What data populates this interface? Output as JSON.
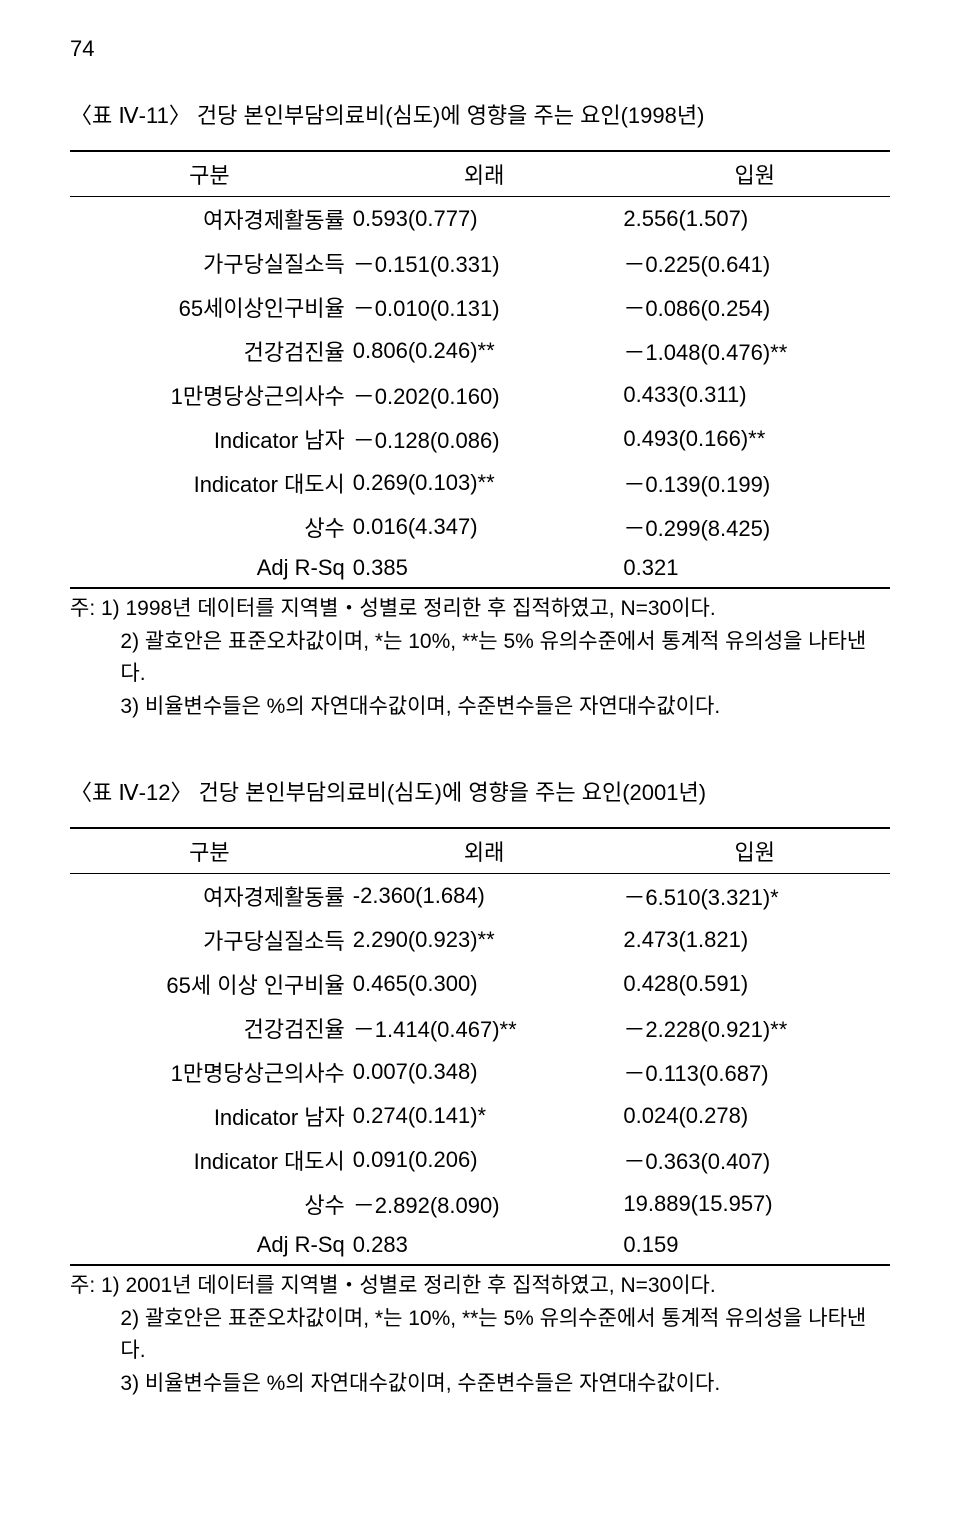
{
  "page_number": "74",
  "table1": {
    "title": "〈표 Ⅳ-11〉 건당 본인부담의료비(심도)에 영향을 주는 요인(1998년)",
    "headers": [
      "구분",
      "외래",
      "입원"
    ],
    "rows": [
      {
        "label": "여자경제활동률",
        "c1": "0.593(0.777)",
        "c2": "2.556(1.507)"
      },
      {
        "label": "가구당실질소득",
        "c1": "－0.151(0.331)",
        "c2": "－0.225(0.641)"
      },
      {
        "label": "65세이상인구비율",
        "c1": "－0.010(0.131)",
        "c2": "－0.086(0.254)"
      },
      {
        "label": "건강검진율",
        "c1": "0.806(0.246)**",
        "c2": "－1.048(0.476)**"
      },
      {
        "label": "1만명당상근의사수",
        "c1": "－0.202(0.160)",
        "c2": "0.433(0.311)"
      },
      {
        "label": "Indicator 남자",
        "c1": "－0.128(0.086)",
        "c2": "0.493(0.166)**"
      },
      {
        "label": "Indicator 대도시",
        "c1": "0.269(0.103)**",
        "c2": "－0.139(0.199)"
      },
      {
        "label": "상수",
        "c1": "0.016(4.347)",
        "c2": "－0.299(8.425)"
      },
      {
        "label": "Adj R-Sq",
        "c1": "0.385",
        "c2": "0.321"
      }
    ],
    "notes": [
      "주: 1) 1998년 데이터를 지역별‧성별로 정리한 후 집적하였고, N=30이다.",
      "2) 괄호안은 표준오차값이며, *는 10%, **는 5% 유의수준에서 통계적 유의성을 나타낸다.",
      "3) 비율변수들은 %의 자연대수값이며, 수준변수들은 자연대수값이다."
    ]
  },
  "table2": {
    "title": "〈표 Ⅳ-12〉 건당 본인부담의료비(심도)에 영향을 주는 요인(2001년)",
    "headers": [
      "구분",
      "외래",
      "입원"
    ],
    "rows": [
      {
        "label": "여자경제활동률",
        "c1": "-2.360(1.684)",
        "c2": "－6.510(3.321)*"
      },
      {
        "label": "가구당실질소득",
        "c1": "2.290(0.923)**",
        "c2": "2.473(1.821)"
      },
      {
        "label": "65세 이상 인구비율",
        "c1": "0.465(0.300)",
        "c2": "0.428(0.591)"
      },
      {
        "label": "건강검진율",
        "c1": "－1.414(0.467)**",
        "c2": "－2.228(0.921)**"
      },
      {
        "label": "1만명당상근의사수",
        "c1": "0.007(0.348)",
        "c2": "－0.113(0.687)"
      },
      {
        "label": "Indicator 남자",
        "c1": "0.274(0.141)*",
        "c2": "0.024(0.278)"
      },
      {
        "label": "Indicator 대도시",
        "c1": "0.091(0.206)",
        "c2": "－0.363(0.407)"
      },
      {
        "label": "상수",
        "c1": "－2.892(8.090)",
        "c2": "19.889(15.957)"
      },
      {
        "label": "Adj R-Sq",
        "c1": "0.283",
        "c2": "0.159"
      }
    ],
    "notes": [
      "주: 1) 2001년 데이터를 지역별‧성별로 정리한 후 집적하였고, N=30이다.",
      "2) 괄호안은 표준오차값이며, *는 10%, **는 5% 유의수준에서 통계적 유의성을 나타낸다.",
      "3) 비율변수들은 %의 자연대수값이며, 수준변수들은 자연대수값이다."
    ]
  }
}
